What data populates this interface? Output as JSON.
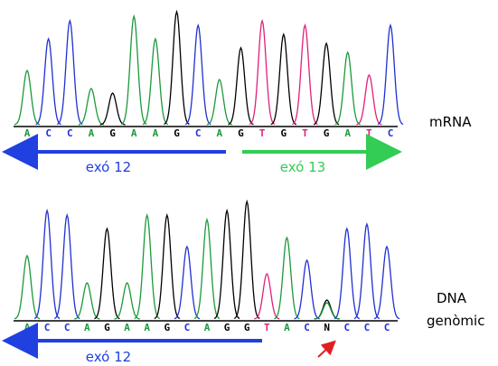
{
  "mrna": {
    "bases": [
      "A",
      "C",
      "C",
      "A",
      "G",
      "A",
      "A",
      "G",
      "C",
      "A",
      "G",
      "T",
      "G",
      "T",
      "G",
      "A",
      "T",
      "C"
    ],
    "exon_left": "exó 12",
    "exon_right": "exó 13",
    "label": "mRNA"
  },
  "genomic": {
    "bases": [
      "A",
      "C",
      "C",
      "A",
      "G",
      "A",
      "A",
      "G",
      "C",
      "A",
      "G",
      "G",
      "T",
      "A",
      "C",
      "N",
      "C",
      "C",
      "C"
    ],
    "exon_left": "exó 12",
    "label_line1": "DNA",
    "label_line2": "genòmic"
  }
}
